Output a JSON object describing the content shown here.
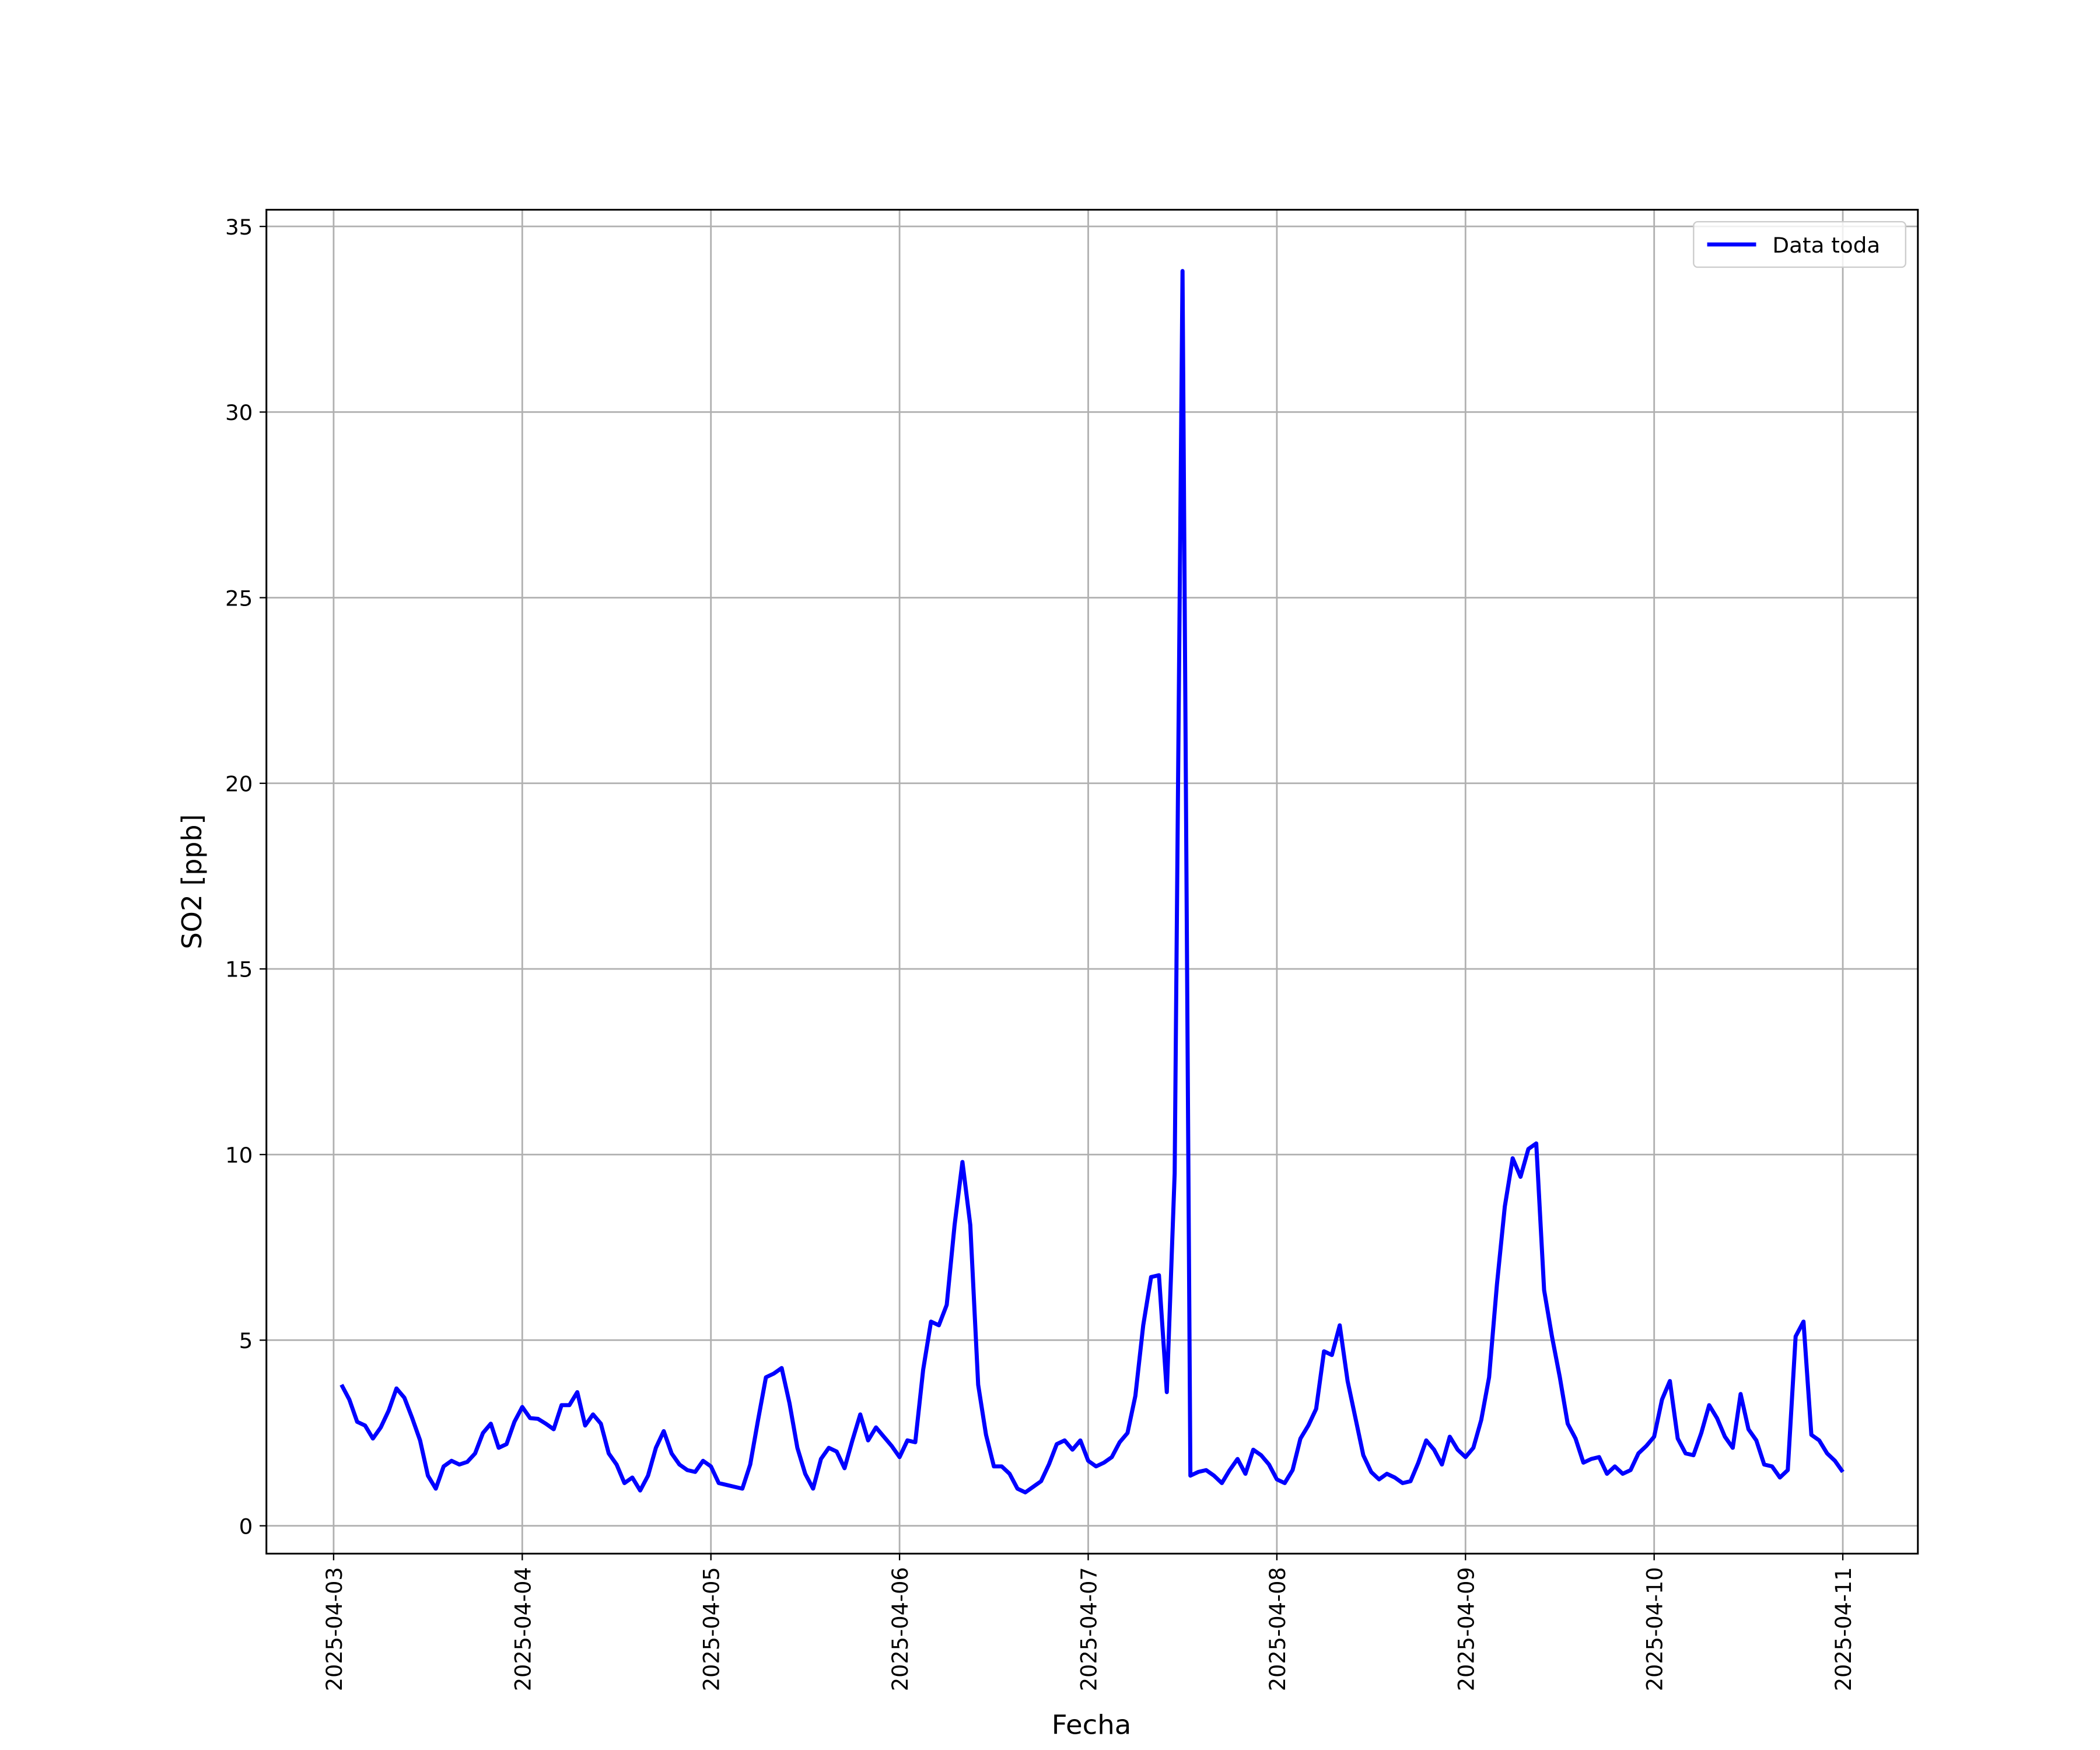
{
  "chart_data": {
    "type": "line",
    "xlabel": "Fecha",
    "ylabel": "SO2 [ppb]",
    "xlim": [
      "2025-04-02 15:27",
      "2025-04-11 09:33"
    ],
    "xticks": [
      "2025-04-03",
      "2025-04-04",
      "2025-04-05",
      "2025-04-06",
      "2025-04-07",
      "2025-04-08",
      "2025-04-09",
      "2025-04-10",
      "2025-04-11"
    ],
    "ylim": [
      -0.75,
      35.45
    ],
    "yticks": [
      0,
      5,
      10,
      15,
      20,
      25,
      30,
      35
    ],
    "grid": true,
    "legend": "upper right",
    "x": [
      "2025-04-03 01:00",
      "2025-04-03 02:00",
      "2025-04-03 03:00",
      "2025-04-03 04:00",
      "2025-04-03 05:00",
      "2025-04-03 06:00",
      "2025-04-03 07:00",
      "2025-04-03 08:00",
      "2025-04-03 09:00",
      "2025-04-03 10:00",
      "2025-04-03 11:00",
      "2025-04-03 12:00",
      "2025-04-03 13:00",
      "2025-04-03 14:00",
      "2025-04-03 15:00",
      "2025-04-03 16:00",
      "2025-04-03 17:00",
      "2025-04-03 18:00",
      "2025-04-03 19:00",
      "2025-04-03 20:00",
      "2025-04-03 21:00",
      "2025-04-03 22:00",
      "2025-04-03 23:00",
      "2025-04-04 00:00",
      "2025-04-04 01:00",
      "2025-04-04 02:00",
      "2025-04-04 03:00",
      "2025-04-04 04:00",
      "2025-04-04 05:00",
      "2025-04-04 06:00",
      "2025-04-04 07:00",
      "2025-04-04 08:00",
      "2025-04-04 09:00",
      "2025-04-04 10:00",
      "2025-04-04 11:00",
      "2025-04-04 12:00",
      "2025-04-04 13:00",
      "2025-04-04 14:00",
      "2025-04-04 15:00",
      "2025-04-04 16:00",
      "2025-04-04 17:00",
      "2025-04-04 18:00",
      "2025-04-04 19:00",
      "2025-04-04 20:00",
      "2025-04-04 21:00",
      "2025-04-04 22:00",
      "2025-04-04 23:00",
      "2025-04-05 00:00",
      "2025-04-05 01:00",
      "2025-04-05 02:00",
      "2025-04-05 03:00",
      "2025-04-05 04:00",
      "2025-04-05 05:00",
      "2025-04-05 06:00",
      "2025-04-05 07:00",
      "2025-04-05 08:00",
      "2025-04-05 09:00",
      "2025-04-05 10:00",
      "2025-04-05 11:00",
      "2025-04-05 12:00",
      "2025-04-05 13:00",
      "2025-04-05 14:00",
      "2025-04-05 15:00",
      "2025-04-05 16:00",
      "2025-04-05 17:00",
      "2025-04-05 18:00",
      "2025-04-05 19:00",
      "2025-04-05 20:00",
      "2025-04-05 21:00",
      "2025-04-05 22:00",
      "2025-04-05 23:00",
      "2025-04-06 00:00",
      "2025-04-06 01:00",
      "2025-04-06 02:00",
      "2025-04-06 03:00",
      "2025-04-06 04:00",
      "2025-04-06 05:00",
      "2025-04-06 06:00",
      "2025-04-06 07:00",
      "2025-04-06 08:00",
      "2025-04-06 09:00",
      "2025-04-06 10:00",
      "2025-04-06 11:00",
      "2025-04-06 12:00",
      "2025-04-06 13:00",
      "2025-04-06 14:00",
      "2025-04-06 15:00",
      "2025-04-06 16:00",
      "2025-04-06 17:00",
      "2025-04-06 18:00",
      "2025-04-06 19:00",
      "2025-04-06 20:00",
      "2025-04-06 21:00",
      "2025-04-06 22:00",
      "2025-04-06 23:00",
      "2025-04-07 00:00",
      "2025-04-07 01:00",
      "2025-04-07 02:00",
      "2025-04-07 03:00",
      "2025-04-07 04:00",
      "2025-04-07 05:00",
      "2025-04-07 06:00",
      "2025-04-07 07:00",
      "2025-04-07 08:00",
      "2025-04-07 09:00",
      "2025-04-07 10:00",
      "2025-04-07 11:00",
      "2025-04-07 12:00",
      "2025-04-07 13:00",
      "2025-04-07 14:00",
      "2025-04-07 15:00",
      "2025-04-07 16:00",
      "2025-04-07 17:00",
      "2025-04-07 18:00",
      "2025-04-07 19:00",
      "2025-04-07 20:00",
      "2025-04-07 21:00",
      "2025-04-07 22:00",
      "2025-04-07 23:00",
      "2025-04-08 00:00",
      "2025-04-08 01:00",
      "2025-04-08 02:00",
      "2025-04-08 03:00",
      "2025-04-08 04:00",
      "2025-04-08 05:00",
      "2025-04-08 06:00",
      "2025-04-08 07:00",
      "2025-04-08 08:00",
      "2025-04-08 09:00",
      "2025-04-08 10:00",
      "2025-04-08 11:00",
      "2025-04-08 12:00",
      "2025-04-08 13:00",
      "2025-04-08 14:00",
      "2025-04-08 15:00",
      "2025-04-08 16:00",
      "2025-04-08 17:00",
      "2025-04-08 18:00",
      "2025-04-08 19:00",
      "2025-04-08 20:00",
      "2025-04-08 21:00",
      "2025-04-08 22:00",
      "2025-04-08 23:00",
      "2025-04-09 00:00",
      "2025-04-09 01:00",
      "2025-04-09 02:00",
      "2025-04-09 03:00",
      "2025-04-09 04:00",
      "2025-04-09 05:00",
      "2025-04-09 06:00",
      "2025-04-09 07:00",
      "2025-04-09 08:00",
      "2025-04-09 09:00",
      "2025-04-09 10:00",
      "2025-04-09 11:00",
      "2025-04-09 12:00",
      "2025-04-09 13:00",
      "2025-04-09 14:00",
      "2025-04-09 15:00",
      "2025-04-09 16:00",
      "2025-04-09 17:00",
      "2025-04-09 18:00",
      "2025-04-09 19:00",
      "2025-04-09 20:00",
      "2025-04-09 21:00",
      "2025-04-09 22:00",
      "2025-04-09 23:00",
      "2025-04-10 00:00",
      "2025-04-10 01:00",
      "2025-04-10 02:00",
      "2025-04-10 03:00",
      "2025-04-10 04:00",
      "2025-04-10 05:00",
      "2025-04-10 06:00",
      "2025-04-10 07:00",
      "2025-04-10 08:00",
      "2025-04-10 09:00",
      "2025-04-10 10:00",
      "2025-04-10 11:00",
      "2025-04-10 12:00",
      "2025-04-10 13:00",
      "2025-04-10 14:00",
      "2025-04-10 15:00",
      "2025-04-10 16:00",
      "2025-04-10 17:00",
      "2025-04-10 18:00",
      "2025-04-10 19:00",
      "2025-04-10 20:00",
      "2025-04-10 21:00",
      "2025-04-10 22:00",
      "2025-04-10 23:00",
      "2025-04-11 00:00"
    ],
    "series": [
      {
        "name": "Data toda",
        "color": "#0000ff",
        "values": [
          3.8,
          3.4,
          2.8,
          2.7,
          2.35,
          2.65,
          3.1,
          3.7,
          3.45,
          2.9,
          2.3,
          1.35,
          1.0,
          1.6,
          1.75,
          1.65,
          1.72,
          1.95,
          2.5,
          2.75,
          2.1,
          2.2,
          2.8,
          3.2,
          2.9,
          2.88,
          2.75,
          2.6,
          3.25,
          3.25,
          3.6,
          2.7,
          3.0,
          2.75,
          1.95,
          1.65,
          1.15,
          1.3,
          0.95,
          1.35,
          2.1,
          2.55,
          1.95,
          1.65,
          1.5,
          1.45,
          1.75,
          1.6,
          1.15,
          1.1,
          1.05,
          1.0,
          1.65,
          2.85,
          4.0,
          4.1,
          4.25,
          3.3,
          2.1,
          1.4,
          1.0,
          1.8,
          2.1,
          2.0,
          1.55,
          2.3,
          3.0,
          2.3,
          2.65,
          2.4,
          2.15,
          1.85,
          2.3,
          2.25,
          4.2,
          5.5,
          5.4,
          5.95,
          8.1,
          9.8,
          8.1,
          3.8,
          2.45,
          1.6,
          1.6,
          1.4,
          1.0,
          0.9,
          1.05,
          1.2,
          1.65,
          2.2,
          2.3,
          2.05,
          2.3,
          1.75,
          1.6,
          1.7,
          1.85,
          2.25,
          2.5,
          3.5,
          5.4,
          6.7,
          6.75,
          3.6,
          9.5,
          33.8,
          1.35,
          1.45,
          1.5,
          1.35,
          1.15,
          1.5,
          1.8,
          1.4,
          2.05,
          1.9,
          1.65,
          1.25,
          1.15,
          1.5,
          2.35,
          2.7,
          3.15,
          4.7,
          4.6,
          5.4,
          3.9,
          2.9,
          1.9,
          1.45,
          1.25,
          1.4,
          1.3,
          1.15,
          1.2,
          1.7,
          2.3,
          2.05,
          1.65,
          2.4,
          2.05,
          1.85,
          2.1,
          2.85,
          4.0,
          6.5,
          8.6,
          9.9,
          9.4,
          10.15,
          10.3,
          6.35,
          5.1,
          4.0,
          2.75,
          2.35,
          1.7,
          1.8,
          1.85,
          1.4,
          1.6,
          1.4,
          1.5,
          1.95,
          2.15,
          2.4,
          3.4,
          3.9,
          2.35,
          1.95,
          1.9,
          2.5,
          3.25,
          2.9,
          2.4,
          2.1,
          3.55,
          2.6,
          2.3,
          1.65,
          1.6,
          1.3,
          1.5,
          5.1,
          5.5,
          2.45,
          2.3,
          1.95,
          1.75,
          1.45
        ]
      }
    ]
  }
}
